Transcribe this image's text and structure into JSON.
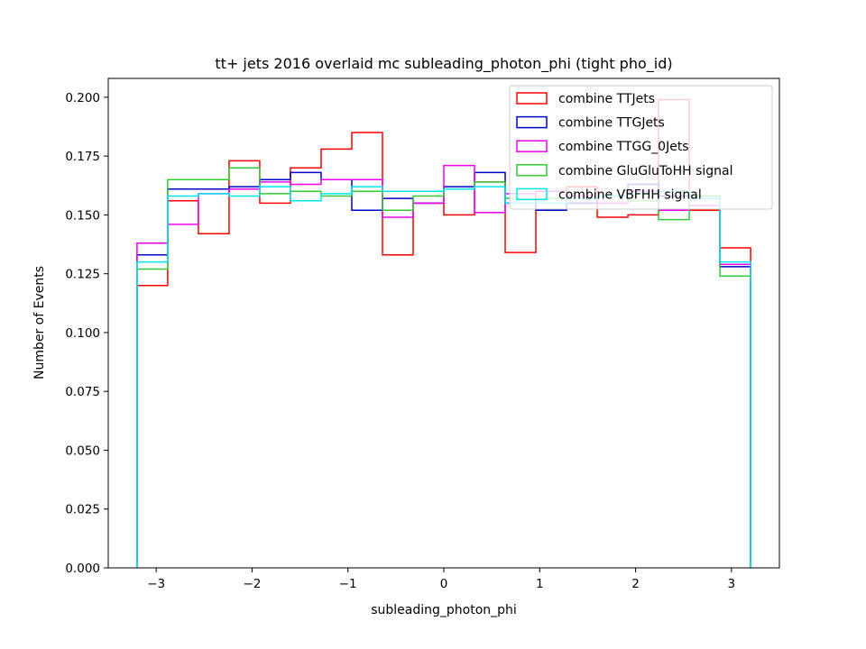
{
  "chart_data": {
    "type": "histogram-step",
    "title": "tt+ jets 2016 overlaid mc subleading_photon_phi (tight pho_id)",
    "xlabel": "subleading_photon_phi",
    "ylabel": "Number of Events",
    "xlim": [
      -3.5,
      3.5
    ],
    "ylim": [
      0.0,
      0.208
    ],
    "x_ticks": [
      -3,
      -2,
      -1,
      0,
      1,
      2,
      3
    ],
    "x_tick_labels": [
      "−3",
      "−2",
      "−1",
      "0",
      "1",
      "2",
      "3"
    ],
    "y_ticks": [
      0.0,
      0.025,
      0.05,
      0.075,
      0.1,
      0.125,
      0.15,
      0.175,
      0.2
    ],
    "y_tick_labels": [
      "0.000",
      "0.025",
      "0.050",
      "0.075",
      "0.100",
      "0.125",
      "0.150",
      "0.175",
      "0.200"
    ],
    "bin_edges": [
      -3.2,
      -2.88,
      -2.56,
      -2.24,
      -1.92,
      -1.6,
      -1.28,
      -0.96,
      -0.64,
      -0.32,
      0.0,
      0.32,
      0.64,
      0.96,
      1.28,
      1.6,
      1.92,
      2.24,
      2.56,
      2.88,
      3.2
    ],
    "legend_position": "top-right",
    "grid": false,
    "series": [
      {
        "name": "combine TTJets",
        "color": "#ff0000",
        "values": [
          0.12,
          0.156,
          0.142,
          0.173,
          0.155,
          0.17,
          0.178,
          0.185,
          0.133,
          0.155,
          0.15,
          0.164,
          0.134,
          0.16,
          0.162,
          0.149,
          0.15,
          0.199,
          0.152,
          0.136
        ]
      },
      {
        "name": "combine TTGJets",
        "color": "#0000cc",
        "values": [
          0.133,
          0.161,
          0.161,
          0.162,
          0.165,
          0.168,
          0.165,
          0.152,
          0.157,
          0.155,
          0.162,
          0.168,
          0.155,
          0.152,
          0.155,
          0.158,
          0.163,
          0.158,
          0.158,
          0.128
        ]
      },
      {
        "name": "combine TTGG_0Jets",
        "color": "#ee00ee",
        "values": [
          0.138,
          0.146,
          0.159,
          0.161,
          0.164,
          0.163,
          0.165,
          0.165,
          0.149,
          0.155,
          0.171,
          0.151,
          0.159,
          0.16,
          0.158,
          0.155,
          0.16,
          0.152,
          0.154,
          0.129
        ]
      },
      {
        "name": "combine GluGluToHH signal",
        "color": "#33cc33",
        "values": [
          0.127,
          0.165,
          0.165,
          0.17,
          0.159,
          0.16,
          0.158,
          0.16,
          0.152,
          0.158,
          0.161,
          0.164,
          0.157,
          0.157,
          0.157,
          0.158,
          0.156,
          0.148,
          0.158,
          0.124
        ]
      },
      {
        "name": "combine VBFHH signal",
        "color": "#00e5ee",
        "values": [
          0.13,
          0.158,
          0.159,
          0.158,
          0.162,
          0.156,
          0.159,
          0.162,
          0.16,
          0.16,
          0.161,
          0.162,
          0.155,
          0.155,
          0.157,
          0.158,
          0.159,
          0.16,
          0.157,
          0.13
        ]
      }
    ]
  }
}
